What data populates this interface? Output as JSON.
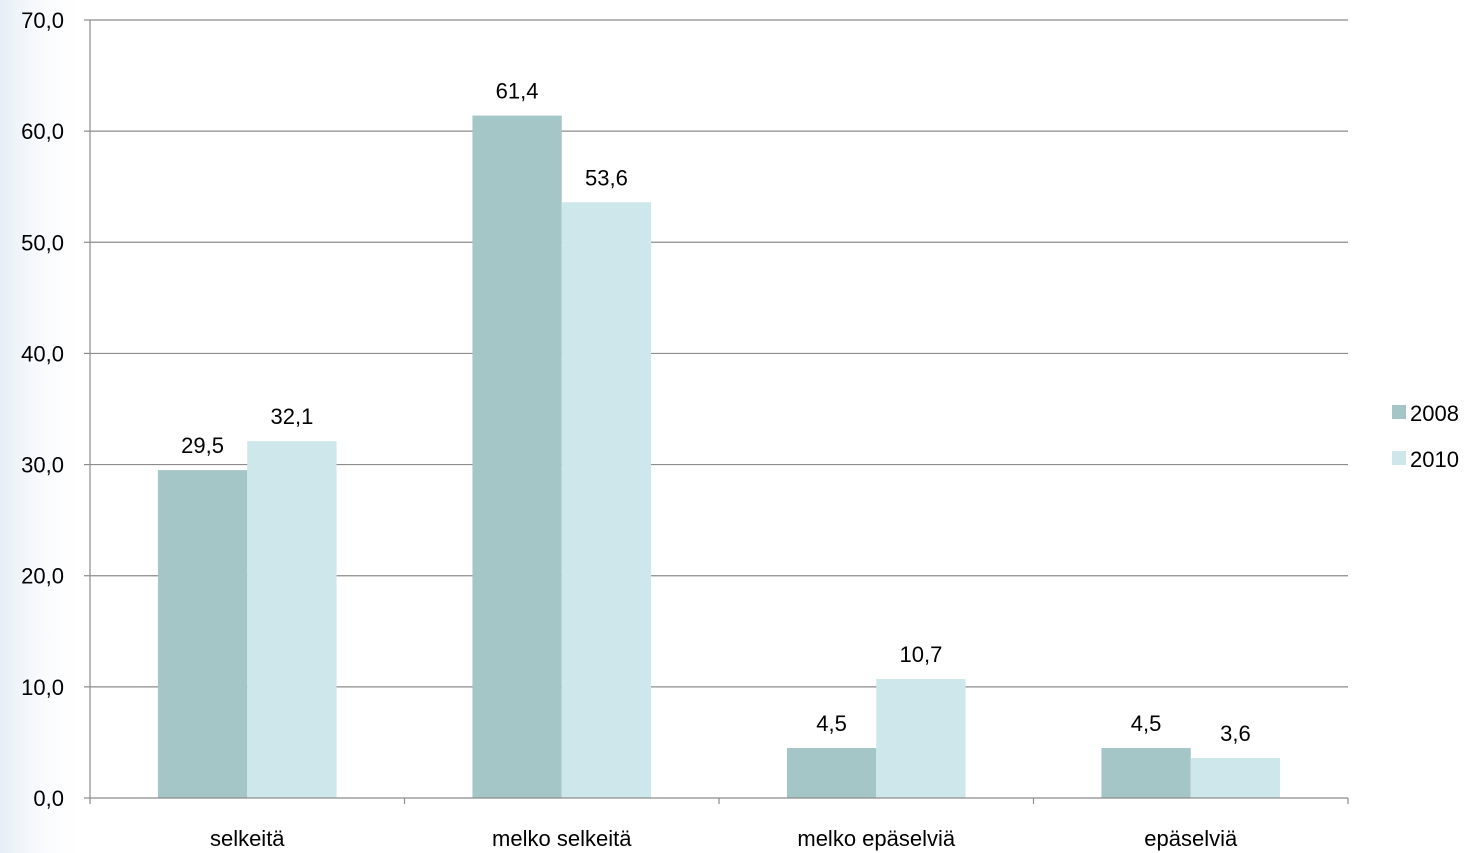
{
  "chart_data": {
    "type": "bar",
    "categories": [
      "selkeitä",
      "melko selkeitä",
      "melko epäselviä",
      "epäselviä"
    ],
    "series": [
      {
        "name": "2008",
        "values": [
          29.5,
          61.4,
          4.5,
          4.5
        ],
        "value_labels": [
          "29,5",
          "61,4",
          "4,5",
          "4,5"
        ],
        "color": "#a5c6c7"
      },
      {
        "name": "2010",
        "values": [
          32.1,
          53.6,
          10.7,
          3.6
        ],
        "value_labels": [
          "32,1",
          "53,6",
          "10,7",
          "3,6"
        ],
        "color": "#cde7ea"
      }
    ],
    "ylim": [
      0,
      70
    ],
    "yticks": [
      0,
      10,
      20,
      30,
      40,
      50,
      60,
      70
    ],
    "ytick_labels": [
      "0,0",
      "10,0",
      "20,0",
      "30,0",
      "40,0",
      "50,0",
      "60,0",
      "70,0"
    ],
    "title": "",
    "xlabel": "",
    "ylabel": "",
    "grid": true,
    "legend_position": "right",
    "colors": {
      "gridline": "#8c8c8c",
      "axis": "#8c8c8c"
    }
  }
}
